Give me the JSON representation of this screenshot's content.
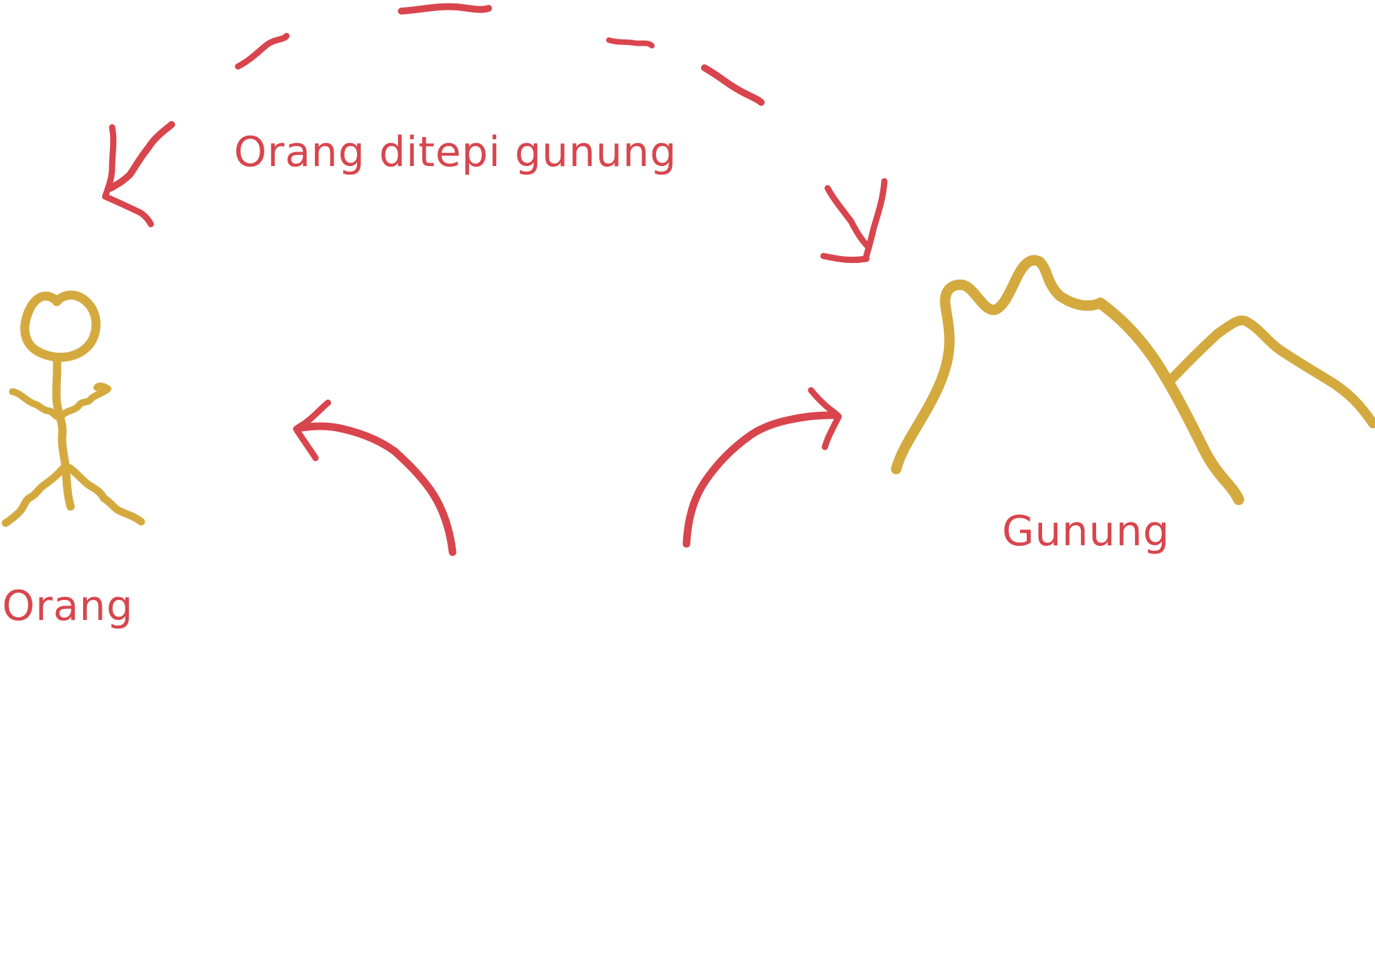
{
  "labels": {
    "top": "Orang ditepi gunung",
    "person": "Orang",
    "mountain": "Gunung"
  },
  "colors": {
    "text": "#d9454d",
    "arrow": "#d9454d",
    "figure": "#d4aa3f",
    "background": "#ffffff"
  },
  "icons": {
    "person": "stick-figure-icon",
    "mountain": "mountain-icon",
    "arrow": "curved-arrow-icon"
  }
}
